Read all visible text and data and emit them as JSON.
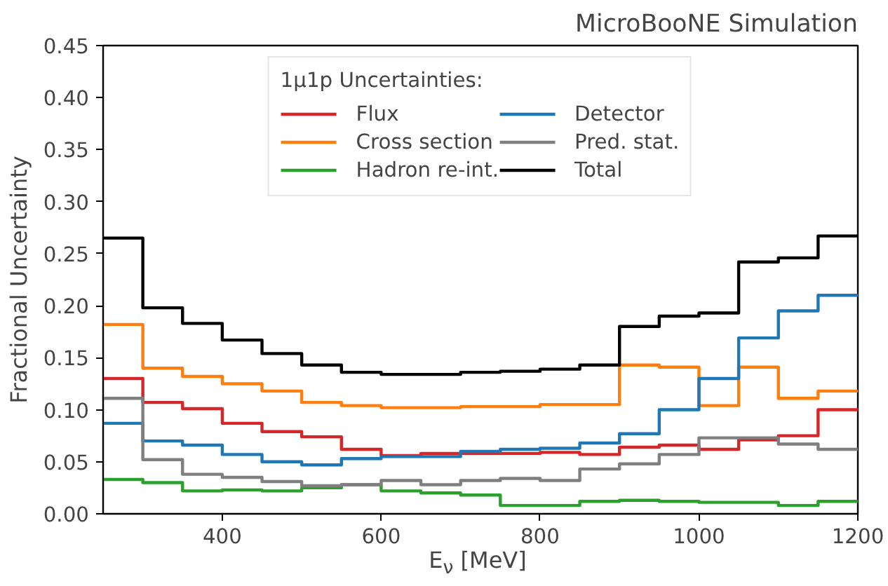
{
  "chart_data": {
    "type": "histogram",
    "bins": [
      250,
      300,
      350,
      400,
      450,
      500,
      550,
      600,
      650,
      700,
      750,
      800,
      850,
      900,
      950,
      1000,
      1050,
      1100,
      1150,
      1200
    ],
    "title": "MicroBooNE Simulation",
    "xlabel": "E$_{ν}$ [MeV]",
    "ylabel": "Fractional Uncertainty",
    "legend_title": "1μ1p Uncertainties:",
    "legend": "top",
    "grid": false,
    "line_style": "solid",
    "marker": "none",
    "xlim": [
      250,
      1200
    ],
    "xticks": [
      400,
      600,
      800,
      1000,
      1200
    ],
    "ylim": [
      0,
      0.45
    ],
    "yticks": [
      {
        "value": 0,
        "label": "0.00"
      },
      {
        "value": 0.05,
        "label": "0.05"
      },
      {
        "value": 0.1,
        "label": "0.10"
      },
      {
        "value": 0.15,
        "label": "0.15"
      },
      {
        "value": 0.2,
        "label": "0.20"
      },
      {
        "value": 0.25,
        "label": "0.25"
      },
      {
        "value": 0.3,
        "label": "0.30"
      },
      {
        "value": 0.35,
        "label": "0.35"
      },
      {
        "value": 0.4,
        "label": "0.40"
      },
      {
        "value": 0.45,
        "label": "0.45"
      }
    ],
    "series": [
      {
        "name": "Flux",
        "color": "#d62728",
        "values": [
          0.13,
          0.107,
          0.101,
          0.087,
          0.079,
          0.074,
          0.062,
          0.056,
          0.058,
          0.058,
          0.058,
          0.059,
          0.057,
          0.064,
          0.066,
          0.062,
          0.071,
          0.075,
          0.1
        ]
      },
      {
        "name": "Cross section",
        "color": "#ff7f0e",
        "values": [
          0.182,
          0.14,
          0.132,
          0.125,
          0.118,
          0.107,
          0.104,
          0.102,
          0.102,
          0.103,
          0.103,
          0.105,
          0.105,
          0.143,
          0.141,
          0.104,
          0.141,
          0.111,
          0.118
        ]
      },
      {
        "name": "Hadron re-int.",
        "color": "#2ca02c",
        "values": [
          0.033,
          0.03,
          0.022,
          0.023,
          0.022,
          0.025,
          0.028,
          0.022,
          0.02,
          0.018,
          0.008,
          0.008,
          0.012,
          0.013,
          0.012,
          0.011,
          0.011,
          0.008,
          0.012
        ]
      },
      {
        "name": "Detector",
        "color": "#1f77b4",
        "values": [
          0.087,
          0.07,
          0.066,
          0.057,
          0.05,
          0.047,
          0.053,
          0.055,
          0.055,
          0.06,
          0.062,
          0.063,
          0.068,
          0.077,
          0.1,
          0.13,
          0.169,
          0.195,
          0.21
        ]
      },
      {
        "name": "Pred. stat.",
        "color": "#7f7f7f",
        "values": [
          0.111,
          0.052,
          0.038,
          0.035,
          0.031,
          0.027,
          0.028,
          0.032,
          0.028,
          0.032,
          0.034,
          0.032,
          0.043,
          0.048,
          0.057,
          0.073,
          0.073,
          0.067,
          0.062
        ]
      },
      {
        "name": "Total",
        "color": "#000000",
        "values": [
          0.265,
          0.198,
          0.183,
          0.167,
          0.154,
          0.143,
          0.136,
          0.134,
          0.134,
          0.136,
          0.137,
          0.139,
          0.143,
          0.18,
          0.19,
          0.193,
          0.242,
          0.246,
          0.267
        ]
      }
    ]
  }
}
